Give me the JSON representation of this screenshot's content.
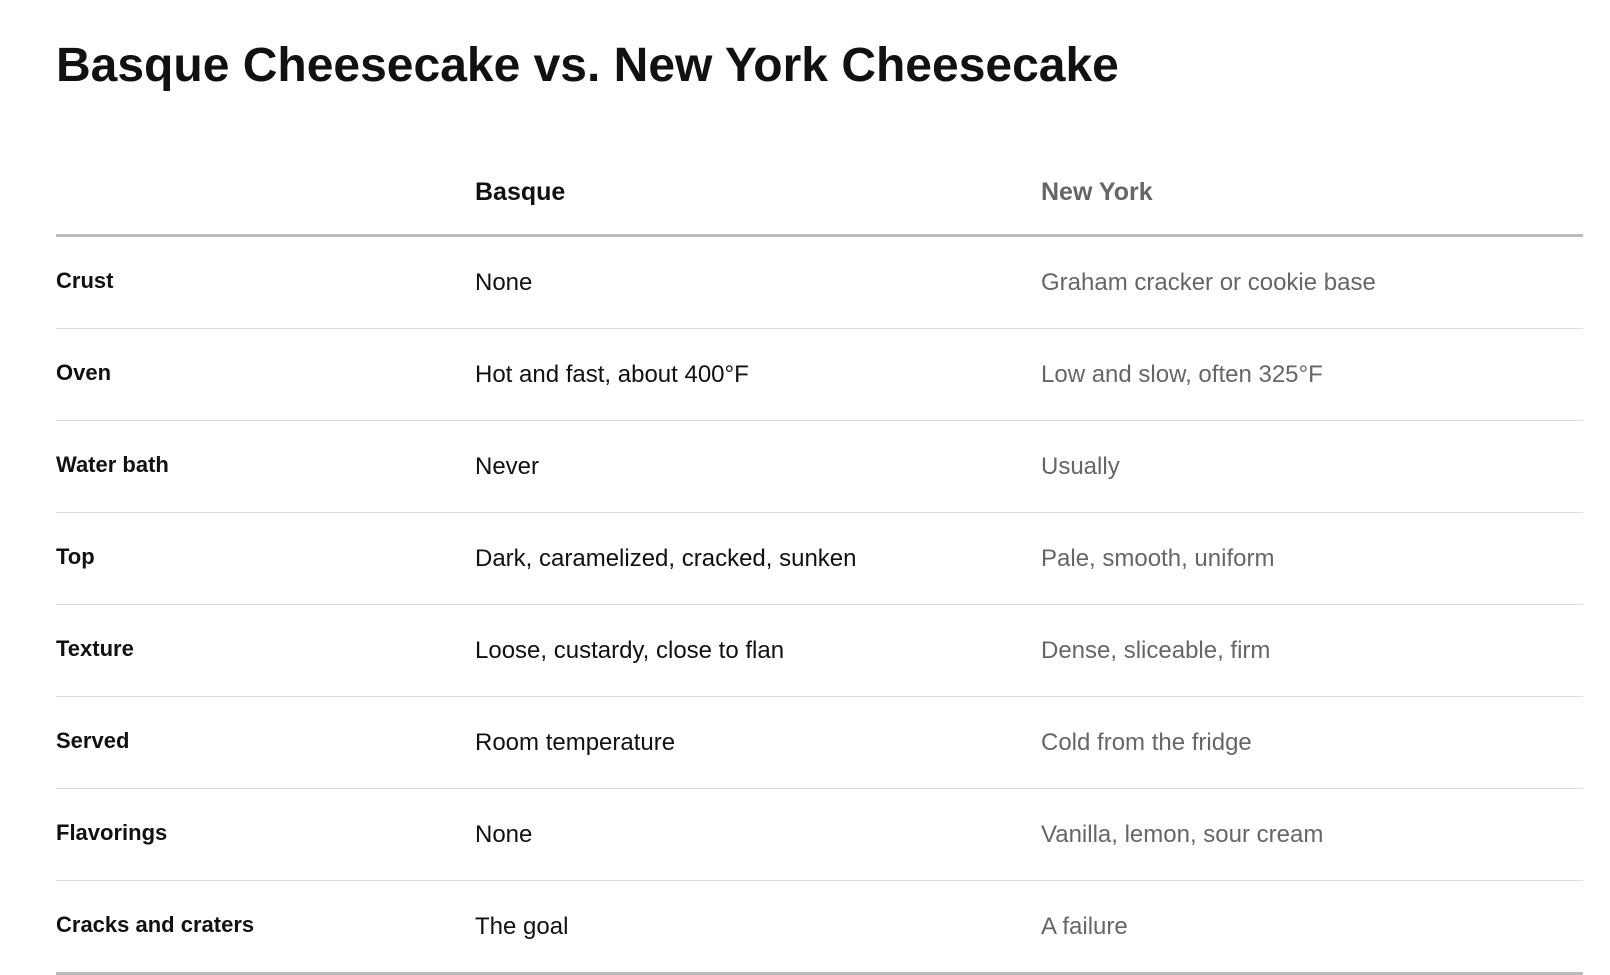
{
  "title": "Basque Cheesecake vs. New York Cheesecake",
  "table": {
    "headers": [
      "Basque",
      "New York"
    ],
    "rows": [
      [
        "Crust",
        "None",
        "Graham cracker or cookie base"
      ],
      [
        "Oven",
        "Hot and fast, about 400°F",
        "Low and slow, often 325°F"
      ],
      [
        "Water bath",
        "Never",
        "Usually"
      ],
      [
        "Top",
        "Dark, caramelized, cracked, sunken",
        "Pale, smooth, uniform"
      ],
      [
        "Texture",
        "Loose, custardy, close to flan",
        "Dense, sliceable, firm"
      ],
      [
        "Served",
        "Room temperature",
        "Cold from the fridge"
      ],
      [
        "Flavorings",
        "None",
        "Vanilla, lemon, sour cream"
      ],
      [
        "Cracks and craters",
        "The goal",
        "A failure"
      ]
    ]
  }
}
